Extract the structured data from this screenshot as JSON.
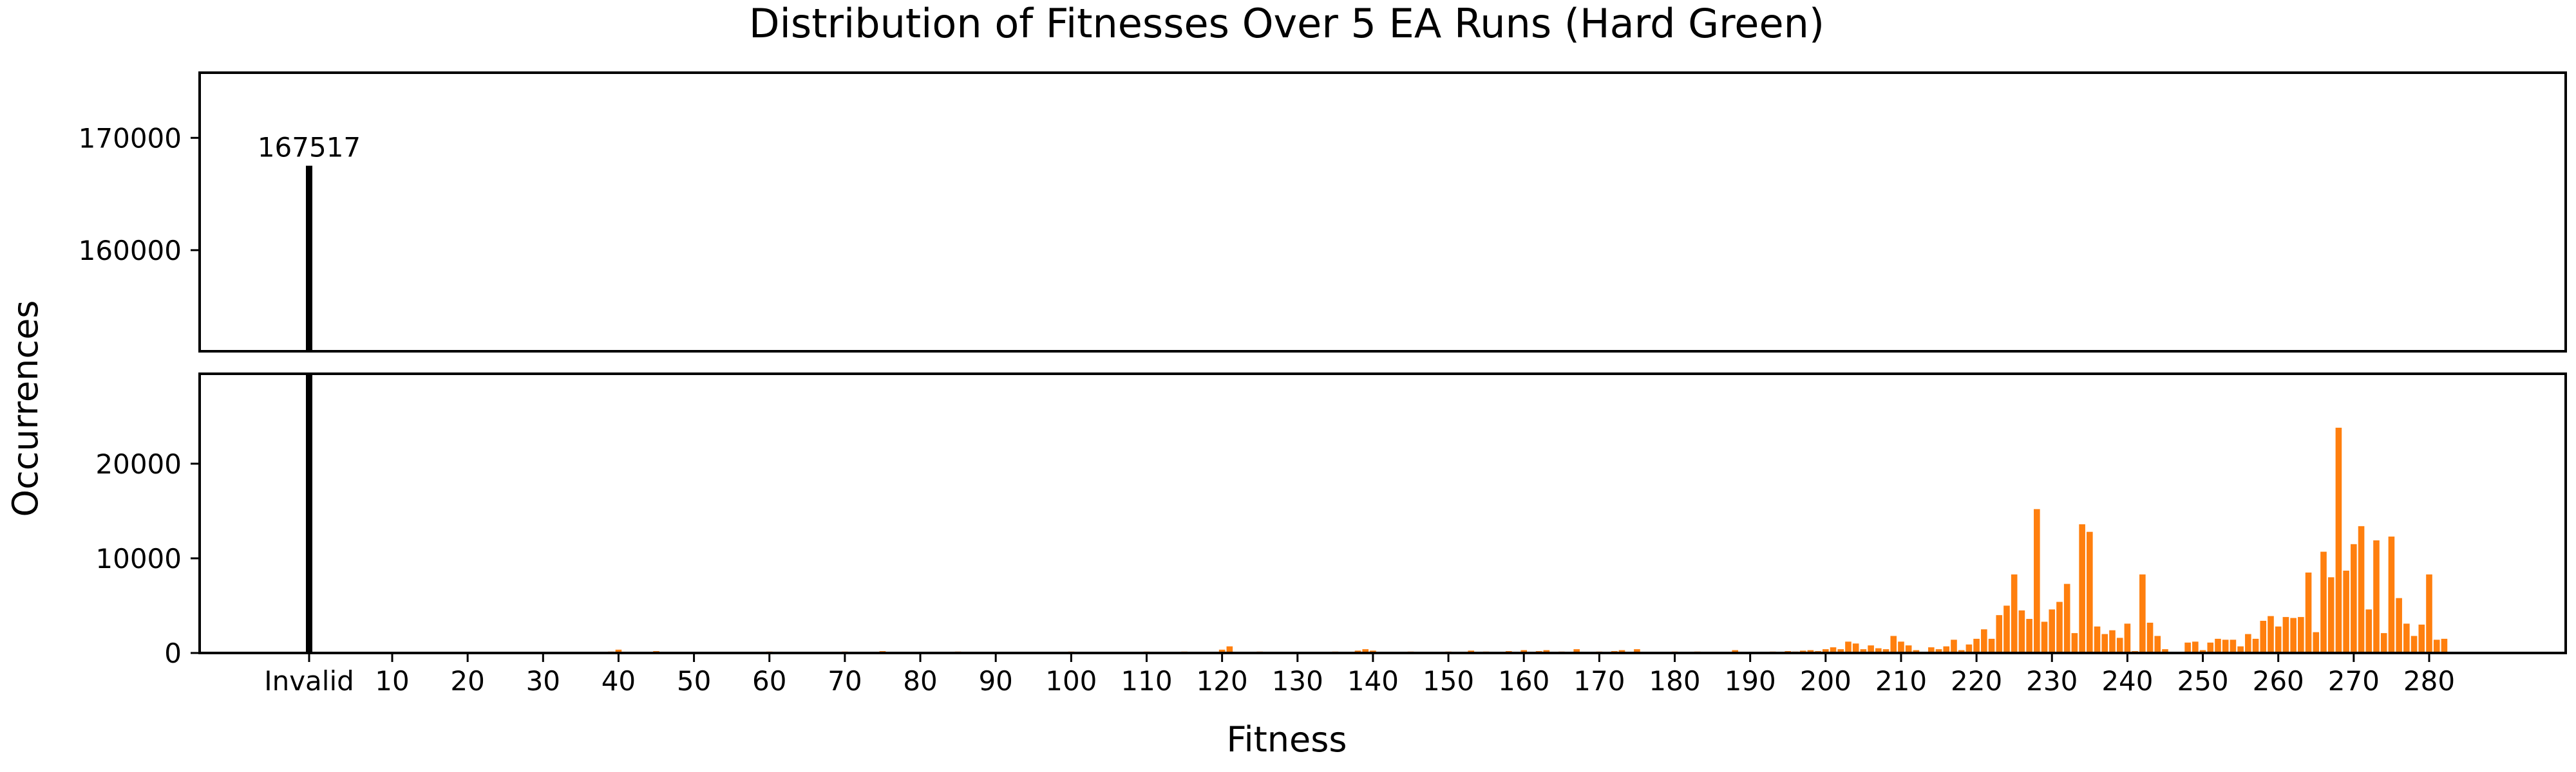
{
  "chart_data": {
    "type": "bar",
    "title": "Distribution of Fitnesses Over 5 EA Runs (Hard Green)",
    "xlabel": "Fitness",
    "ylabel": "Occurrences",
    "broken_axis": true,
    "grid": false,
    "xticks": [
      "Invalid",
      "10",
      "20",
      "30",
      "40",
      "50",
      "60",
      "70",
      "80",
      "90",
      "100",
      "110",
      "120",
      "130",
      "140",
      "150",
      "160",
      "170",
      "180",
      "190",
      "200",
      "210",
      "220",
      "230",
      "240",
      "250",
      "260",
      "270",
      "280"
    ],
    "top_panel": {
      "ylim": [
        151000,
        175800
      ],
      "yticks": [
        160000,
        170000
      ]
    },
    "bottom_panel": {
      "ylim": [
        0,
        29500
      ],
      "yticks": [
        0,
        10000,
        20000
      ]
    },
    "invalid": {
      "label": "Invalid",
      "value": 167517,
      "value_label": "167517",
      "color": "#000000"
    },
    "fitness_series": {
      "color": "#ff7f0e",
      "x": [
        39,
        40,
        45,
        50,
        55,
        60,
        65,
        70,
        75,
        80,
        85,
        90,
        95,
        100,
        105,
        110,
        115,
        120,
        121,
        125,
        130,
        135,
        138,
        139,
        140,
        145,
        150,
        153,
        155,
        158,
        160,
        162,
        163,
        165,
        167,
        170,
        172,
        173,
        175,
        178,
        180,
        183,
        185,
        188,
        190,
        193,
        195,
        196,
        197,
        198,
        199,
        200,
        201,
        202,
        203,
        204,
        205,
        206,
        207,
        208,
        209,
        210,
        211,
        212,
        213,
        214,
        215,
        216,
        217,
        218,
        219,
        220,
        221,
        222,
        223,
        224,
        225,
        226,
        227,
        228,
        229,
        230,
        231,
        232,
        233,
        234,
        235,
        236,
        237,
        238,
        239,
        240,
        241,
        242,
        243,
        244,
        245,
        246,
        247,
        248,
        249,
        250,
        251,
        252,
        253,
        254,
        255,
        256,
        257,
        258,
        259,
        260,
        261,
        262,
        263,
        264,
        265,
        266,
        267,
        268,
        269,
        270,
        271,
        272,
        273,
        274,
        275,
        276,
        277,
        278,
        279,
        280,
        281,
        282
      ],
      "values": [
        150,
        350,
        200,
        100,
        100,
        150,
        100,
        150,
        200,
        100,
        150,
        100,
        100,
        150,
        100,
        150,
        150,
        350,
        700,
        150,
        100,
        150,
        250,
        400,
        250,
        150,
        150,
        250,
        150,
        200,
        300,
        200,
        300,
        150,
        400,
        150,
        200,
        300,
        400,
        100,
        150,
        150,
        100,
        300,
        100,
        150,
        200,
        150,
        250,
        300,
        200,
        400,
        600,
        400,
        1200,
        1000,
        400,
        800,
        500,
        400,
        1800,
        1200,
        800,
        300,
        100,
        600,
        400,
        700,
        1400,
        300,
        900,
        1500,
        2500,
        1500,
        4000,
        5000,
        8300,
        4500,
        3600,
        15200,
        3300,
        4600,
        5400,
        7300,
        2100,
        13600,
        12800,
        2800,
        2000,
        2400,
        1600,
        3100,
        200,
        8300,
        3200,
        1800,
        400,
        100,
        100,
        1100,
        1200,
        300,
        1100,
        1500,
        1400,
        1400,
        700,
        2000,
        1500,
        3400,
        3900,
        2800,
        3800,
        3700,
        3800,
        8500,
        2200,
        10700,
        8000,
        23800,
        8700,
        11500,
        13400,
        4600,
        11900,
        2100,
        12300,
        5800,
        3100,
        1800,
        3000,
        8300,
        1400,
        1500
      ]
    }
  }
}
